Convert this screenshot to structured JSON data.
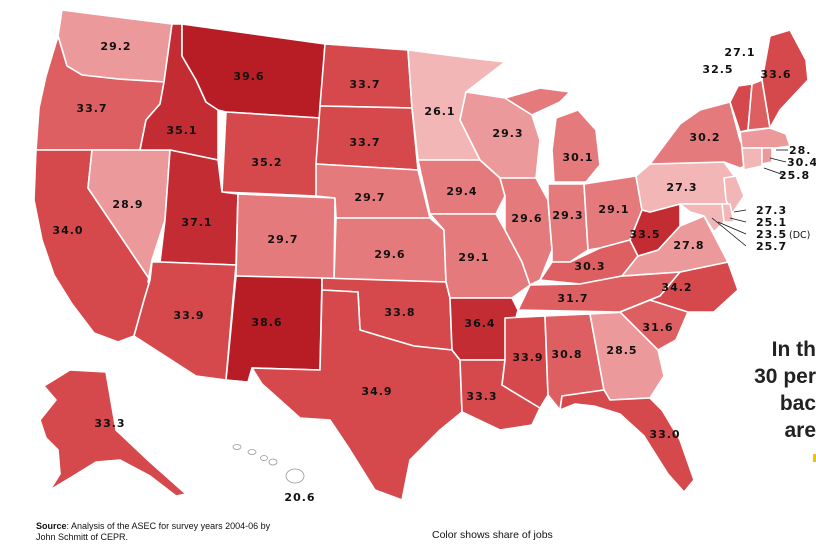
{
  "map": {
    "regions": [
      {
        "state": "WA",
        "value": "29.2"
      },
      {
        "state": "OR",
        "value": "33.7"
      },
      {
        "state": "CA",
        "value": "34.0"
      },
      {
        "state": "NV",
        "value": "28.9"
      },
      {
        "state": "ID",
        "value": "35.1"
      },
      {
        "state": "MT",
        "value": "39.6"
      },
      {
        "state": "WY",
        "value": "35.2"
      },
      {
        "state": "UT",
        "value": "37.1"
      },
      {
        "state": "AZ",
        "value": "33.9"
      },
      {
        "state": "CO",
        "value": "29.7"
      },
      {
        "state": "NM",
        "value": "38.6"
      },
      {
        "state": "ND",
        "value": "33.7"
      },
      {
        "state": "SD",
        "value": "33.7"
      },
      {
        "state": "NE",
        "value": "29.7"
      },
      {
        "state": "KS",
        "value": "29.6"
      },
      {
        "state": "OK",
        "value": "33.8"
      },
      {
        "state": "TX",
        "value": "34.9"
      },
      {
        "state": "MN",
        "value": "26.1"
      },
      {
        "state": "IA",
        "value": "29.4"
      },
      {
        "state": "MO",
        "value": "29.1"
      },
      {
        "state": "AR",
        "value": "36.4"
      },
      {
        "state": "LA",
        "value": "33.3"
      },
      {
        "state": "WI",
        "value": "29.3"
      },
      {
        "state": "IL",
        "value": "29.6"
      },
      {
        "state": "MI",
        "value": "30.1"
      },
      {
        "state": "IN",
        "value": "29.3"
      },
      {
        "state": "OH",
        "value": "29.1"
      },
      {
        "state": "KY",
        "value": "30.3"
      },
      {
        "state": "TN",
        "value": "31.7"
      },
      {
        "state": "MS",
        "value": "33.9"
      },
      {
        "state": "AL",
        "value": "30.8"
      },
      {
        "state": "GA",
        "value": "28.5"
      },
      {
        "state": "FL",
        "value": "33.0"
      },
      {
        "state": "SC",
        "value": "31.6"
      },
      {
        "state": "NC",
        "value": "34.2"
      },
      {
        "state": "VA",
        "value": "27.8"
      },
      {
        "state": "WV",
        "value": "33.5"
      },
      {
        "state": "PA",
        "value": "27.3"
      },
      {
        "state": "NY",
        "value": "30.2"
      },
      {
        "state": "VT",
        "value": "32.5"
      },
      {
        "state": "NH",
        "value": "27.1"
      },
      {
        "state": "ME",
        "value": "33.6"
      },
      {
        "state": "MA",
        "value": "28."
      },
      {
        "state": "RI",
        "value": "30.4"
      },
      {
        "state": "CT",
        "value": "25.8"
      },
      {
        "state": "NJ",
        "value": "27.3"
      },
      {
        "state": "DE",
        "value": "25.1"
      },
      {
        "state": "DC",
        "value": "23.5",
        "suffix": "(DC)"
      },
      {
        "state": "MD",
        "value": "25.7"
      },
      {
        "state": "AK",
        "value": "33.3"
      },
      {
        "state": "HI",
        "value": "20.6"
      }
    ],
    "colors": {
      "darkest": "#b81c24",
      "dark": "#c42c33",
      "medium_dark": "#d5484b",
      "medium": "#de5f61",
      "medium_light": "#e57a7c",
      "light": "#ec999b",
      "lighter": "#f2b6b7",
      "lightest": "#f6cdce"
    }
  },
  "callout": {
    "lines": [
      "In th",
      "30 per",
      "bac",
      "are"
    ]
  },
  "source": {
    "label": "Source",
    "text": ": Analysis of the ASEC for survey years 2004-06 by",
    "line2": "John Schmitt of CEPR."
  },
  "legend": {
    "caption": "Color shows share of jobs"
  }
}
